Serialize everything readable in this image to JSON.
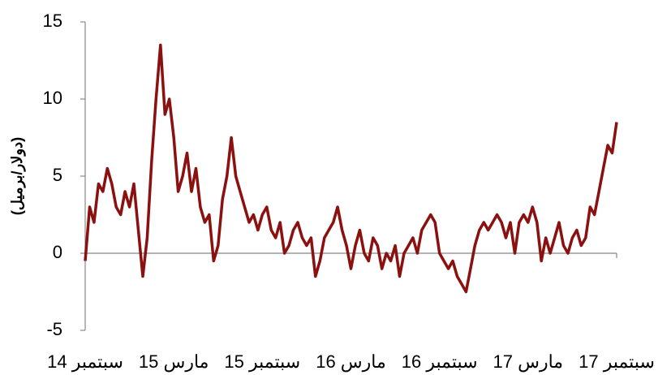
{
  "chart_data": {
    "type": "line",
    "y_label": "(دولار/برميل)",
    "categories": [
      "سبتمبر 14",
      null,
      null,
      null,
      null,
      null,
      null,
      null,
      null,
      null,
      null,
      null,
      null,
      null,
      null,
      null,
      null,
      null,
      null,
      null,
      "مارس 15",
      null,
      null,
      null,
      null,
      null,
      null,
      null,
      null,
      null,
      null,
      null,
      null,
      null,
      null,
      null,
      null,
      null,
      null,
      null,
      "سبتمبر 15",
      null,
      null,
      null,
      null,
      null,
      null,
      null,
      null,
      null,
      null,
      null,
      null,
      null,
      null,
      null,
      null,
      null,
      null,
      null,
      "مارس 16",
      null,
      null,
      null,
      null,
      null,
      null,
      null,
      null,
      null,
      null,
      null,
      null,
      null,
      null,
      null,
      null,
      null,
      null,
      null,
      "سبتمبر 16",
      null,
      null,
      null,
      null,
      null,
      null,
      null,
      null,
      null,
      null,
      null,
      null,
      null,
      null,
      null,
      null,
      null,
      null,
      null,
      "مارس 17",
      null,
      null,
      null,
      null,
      null,
      null,
      null,
      null,
      null,
      null,
      null,
      null,
      null,
      null,
      null,
      null,
      null,
      null,
      null,
      "سبتمبر 17"
    ],
    "series": [
      {
        "color": "#8b1010",
        "values": [
          -0.5,
          3,
          2,
          4.5,
          4,
          5.5,
          4.5,
          3,
          2.5,
          4,
          3,
          4.5,
          1.5,
          -1.5,
          1,
          6,
          10,
          13.5,
          9,
          10,
          7.5,
          4,
          5,
          6.5,
          4,
          5.5,
          3,
          2,
          2.5,
          -0.5,
          0.5,
          3.5,
          5,
          7.5,
          5,
          4,
          3,
          2,
          2.5,
          1.5,
          2.5,
          3,
          1.5,
          1,
          2,
          0,
          0.5,
          1.5,
          2,
          1,
          0.5,
          1,
          -1.5,
          -0.5,
          1,
          1.5,
          2,
          3,
          1.5,
          0.5,
          -1,
          0.5,
          1.5,
          0,
          -0.5,
          1,
          0.5,
          -1,
          0,
          -0.5,
          0.5,
          -1.5,
          0,
          0.5,
          1,
          0,
          1.5,
          2,
          2.5,
          2,
          0,
          -0.5,
          -1,
          -0.5,
          -1.5,
          -2,
          -2.5,
          -1,
          0.5,
          1.5,
          2,
          1.5,
          2,
          2.5,
          2,
          1,
          2,
          0,
          2,
          2.5,
          2,
          3,
          2,
          -0.5,
          1,
          0,
          1,
          2,
          0.5,
          0,
          1,
          1.5,
          0.5,
          1,
          3,
          2.5,
          4,
          5.5,
          7,
          6.5,
          8.5
        ]
      }
    ],
    "ylim": [
      -5,
      15
    ],
    "yticks": [
      -5,
      0,
      5,
      10,
      15
    ]
  }
}
